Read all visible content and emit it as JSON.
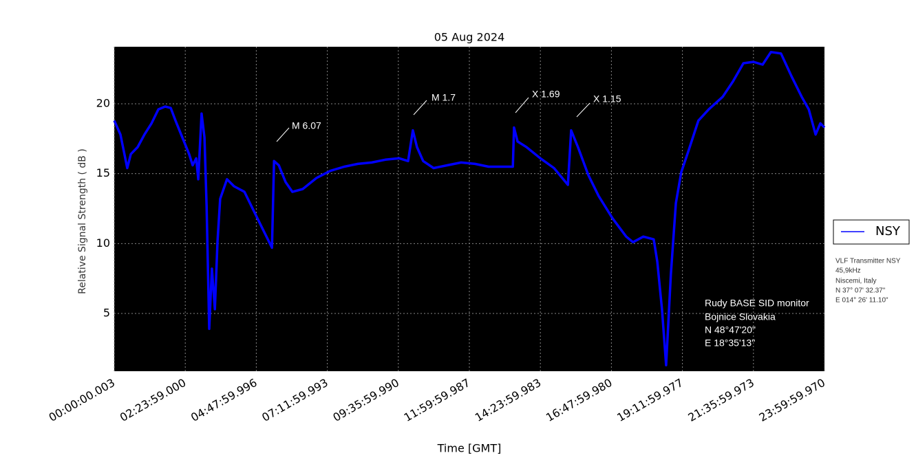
{
  "chart_data": {
    "type": "line",
    "title": "05 Aug 2024",
    "xlabel": "Time [GMT]",
    "ylabel": "Relative Signal Strength ( dB )",
    "x": [
      0,
      0.21,
      0.44,
      0.56,
      0.79,
      1.02,
      1.26,
      1.49,
      1.72,
      1.91,
      2.07,
      2.3,
      2.53,
      2.65,
      2.77,
      2.84,
      2.95,
      3.05,
      3.12,
      3.21,
      3.3,
      3.4,
      3.49,
      3.58,
      3.81,
      4.05,
      4.4,
      4.63,
      4.98,
      5.33,
      5.4,
      5.56,
      5.79,
      6.02,
      6.37,
      6.84,
      7.3,
      7.77,
      8.23,
      8.7,
      9.16,
      9.63,
      9.93,
      10.09,
      10.23,
      10.44,
      10.79,
      11.26,
      11.72,
      12.19,
      12.65,
      13.12,
      13.47,
      13.51,
      13.63,
      13.93,
      14.4,
      14.86,
      15.33,
      15.44,
      15.67,
      16.02,
      16.37,
      16.84,
      17.3,
      17.53,
      17.88,
      18.23,
      18.35,
      18.51,
      18.65,
      18.81,
      18.98,
      19.16,
      19.4,
      19.74,
      20.09,
      20.56,
      20.91,
      21.26,
      21.6,
      21.91,
      22.19,
      22.53,
      22.88,
      23.23,
      23.47,
      23.7,
      23.86,
      24
    ],
    "series": [
      {
        "name": "NSY",
        "color": "#0000ff",
        "values": [
          18.8,
          17.8,
          15.4,
          16.4,
          16.9,
          17.8,
          18.6,
          19.6,
          19.8,
          19.7,
          18.8,
          17.6,
          16.4,
          15.6,
          16.1,
          14.6,
          19.3,
          17.6,
          12.7,
          3.9,
          8.2,
          5.3,
          10.2,
          13.2,
          14.6,
          14.1,
          13.7,
          12.7,
          11.2,
          9.7,
          15.9,
          15.6,
          14.4,
          13.7,
          13.9,
          14.7,
          15.2,
          15.5,
          15.7,
          15.8,
          16.0,
          16.1,
          15.9,
          18.1,
          16.9,
          15.9,
          15.4,
          15.6,
          15.8,
          15.7,
          15.5,
          15.5,
          15.5,
          18.3,
          17.3,
          16.9,
          16.1,
          15.4,
          14.2,
          18.1,
          16.9,
          14.9,
          13.4,
          11.8,
          10.5,
          10.1,
          10.5,
          10.3,
          8.7,
          5.3,
          1.3,
          7.8,
          12.9,
          15.1,
          16.6,
          18.8,
          19.6,
          20.5,
          21.6,
          22.9,
          23.0,
          22.8,
          23.7,
          23.6,
          22.0,
          20.5,
          19.6,
          17.8,
          18.6,
          18.3
        ]
      }
    ],
    "xlim": [
      0,
      24
    ],
    "ylim": [
      0.87,
      24.08
    ],
    "xticks": [
      {
        "value": 0,
        "label": "00:00:00.003"
      },
      {
        "value": 2.4,
        "label": "02:23:59.000"
      },
      {
        "value": 4.8,
        "label": "04:47:59.996"
      },
      {
        "value": 7.2,
        "label": "07:11:59.993"
      },
      {
        "value": 9.6,
        "label": "09:35:59.990"
      },
      {
        "value": 12,
        "label": "11:59:59.987"
      },
      {
        "value": 14.4,
        "label": "14:23:59.983"
      },
      {
        "value": 16.8,
        "label": "16:47:59.980"
      },
      {
        "value": 19.2,
        "label": "19:11:59.977"
      },
      {
        "value": 21.6,
        "label": "21:35:59.973"
      },
      {
        "value": 24,
        "label": "23:59:59.970"
      }
    ],
    "yticks": [
      5,
      10,
      15,
      20
    ],
    "grid": true,
    "legend": "right",
    "annotations": [
      "M 6.07",
      "M 1.7",
      "X 1.69",
      "X 1.15"
    ],
    "station": [
      "Rudy BASE SID monitor",
      "Bojnice Slovakia",
      "N 48°47'20\"",
      "E 18°35'13\""
    ],
    "transmitter": [
      "VLF Transmitter NSY",
      "45,9kHz",
      "Niscemi, Italy",
      "N 37° 07' 32.37\"",
      "E 014° 26' 11.10\""
    ]
  }
}
